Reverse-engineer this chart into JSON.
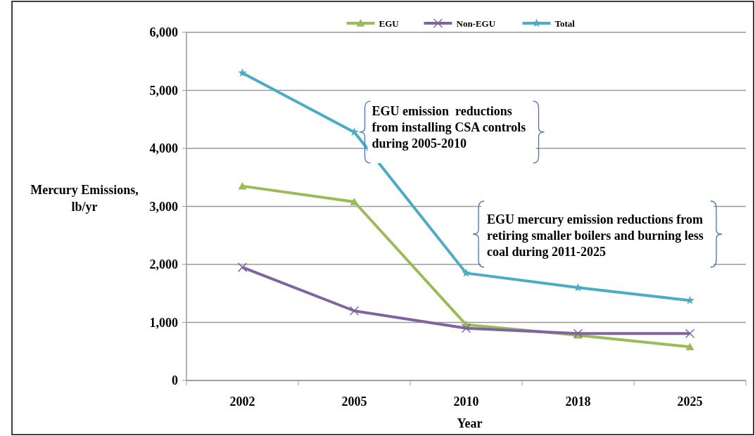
{
  "chart_data": {
    "type": "line",
    "xlabel": "Year",
    "ylabel": "Mercury Emissions,\nlb/yr",
    "categories": [
      "2002",
      "2005",
      "2010",
      "2018",
      "2025"
    ],
    "series": [
      {
        "name": "EGU",
        "color": "#9bbb59",
        "marker": "triangle",
        "values": [
          3350,
          3080,
          960,
          780,
          580
        ]
      },
      {
        "name": "Non-EGU",
        "color": "#8064a2",
        "marker": "cross",
        "values": [
          1950,
          1200,
          900,
          810,
          810
        ]
      },
      {
        "name": "Total",
        "color": "#4bacc6",
        "marker": "star",
        "values": [
          5300,
          4280,
          1850,
          1600,
          1380
        ]
      }
    ],
    "ylim": [
      0,
      6000
    ],
    "yticks": [
      {
        "value": 0,
        "label": "0"
      },
      {
        "value": 1000,
        "label": "1,000"
      },
      {
        "value": 2000,
        "label": "2,000"
      },
      {
        "value": 3000,
        "label": "3,000"
      },
      {
        "value": 4000,
        "label": "4,000"
      },
      {
        "value": 5000,
        "label": "5,000"
      },
      {
        "value": 6000,
        "label": "6,000"
      }
    ],
    "grid": "y",
    "legend": "top",
    "annotations": [
      {
        "text": "EGU emission  reductions\nfrom installing CSA controls\nduring 2005-2010",
        "x": "2005",
        "y": 4280
      },
      "EGU mercury emission reductions from\nretiring smaller boilers and burning less\ncoal during 2011-2025"
    ]
  }
}
